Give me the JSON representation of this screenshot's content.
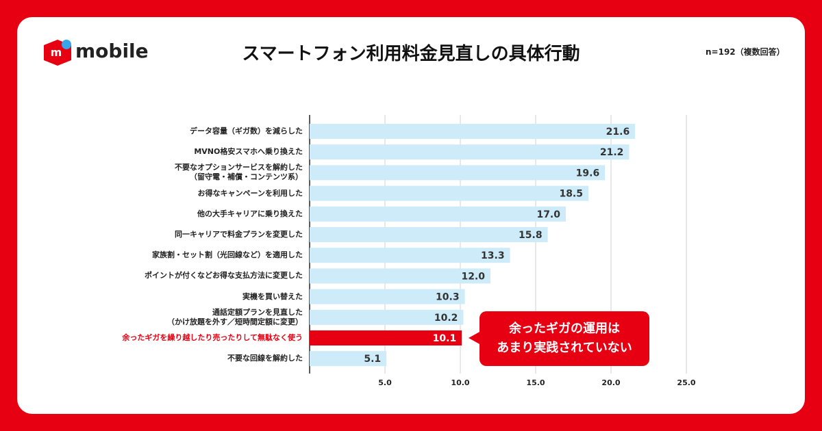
{
  "chart_data": {
    "type": "barh",
    "title": "スマートフォン利用料金見直しの具体行動",
    "note": "n=192（複数回答）",
    "brand": "mobile",
    "logo_mark": "m",
    "categories": [
      "データ容量（ギガ数）を減らした",
      "MVNO格安スマホへ乗り換えた",
      "不要なオプションサービスを解約した\n（留守電・補償・コンテンツ系）",
      "お得なキャンペーンを利用した",
      "他の大手キャリアに乗り換えた",
      "同一キャリアで料金プランを変更した",
      "家族割・セット割（光回線など）を適用した",
      "ポイントが付くなどお得な支払方法に変更した",
      "実機を買い替えた",
      "通話定額プランを見直した\n（かけ放題を外す／短時間定額に変更）",
      "余ったギガを繰り越したり売ったりして無駄なく使う",
      "不要な回線を解約した"
    ],
    "values": [
      21.6,
      21.2,
      19.6,
      18.5,
      17.0,
      15.8,
      13.3,
      12.0,
      10.3,
      10.2,
      10.1,
      5.1
    ],
    "value_labels": [
      "21.6",
      "21.2",
      "19.6",
      "18.5",
      "17.0",
      "15.8",
      "13.3",
      "12.0",
      "10.3",
      "10.2",
      "10.1",
      "5.1"
    ],
    "colors": [
      "#cdebf8",
      "#cdebf8",
      "#cdebf8",
      "#cdebf8",
      "#cdebf8",
      "#cdebf8",
      "#cdebf8",
      "#cdebf8",
      "#cdebf8",
      "#cdebf8",
      "#e60012",
      "#cdebf8"
    ],
    "highlight_color": "#e60012",
    "xlim": [
      0,
      25
    ],
    "xticks": [
      {
        "value": 5,
        "label": "5.0"
      },
      {
        "value": 10,
        "label": "10.0"
      },
      {
        "value": 15,
        "label": "15.0"
      },
      {
        "value": 20,
        "label": "20.0"
      },
      {
        "value": 25,
        "label": "25.0"
      }
    ],
    "grid": true,
    "annotation": "余ったギガの運用は\nあまり実践されていない"
  }
}
